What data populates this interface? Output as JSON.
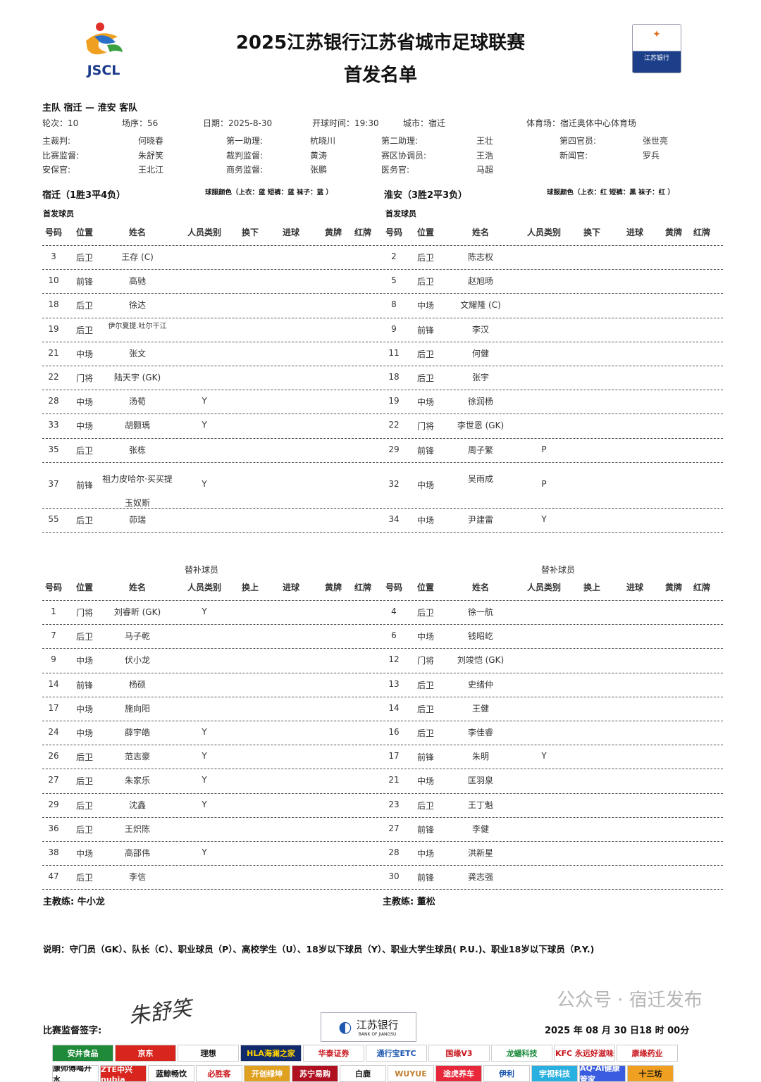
{
  "header": {
    "title_line1": "2025江苏银行江苏省城市足球联赛",
    "title_line2": "首发名单",
    "league_logo_text": "JSCL",
    "bank_logo_text": "江苏银行"
  },
  "match": {
    "teams_line": "主队 宿迁 — 淮安 客队",
    "round": "轮次：10",
    "match_no": "场序：56",
    "date": "日期：2025-8-30",
    "kickoff": "开球时间：19:30",
    "city": "城市：宿迁",
    "stadium": "体育场：宿迁奥体中心体育场"
  },
  "officials": [
    {
      "label": "主裁判:",
      "value": "何晓春"
    },
    {
      "label": "第一助理:",
      "value": "杭晓川"
    },
    {
      "label": "第二助理:",
      "value": "王壮"
    },
    {
      "label": "第四官员:",
      "value": "张世亮"
    },
    {
      "label": "比赛监督:",
      "value": "朱舒笑"
    },
    {
      "label": "裁判监督:",
      "value": "黄涛"
    },
    {
      "label": "赛区协调员:",
      "value": "王浩"
    },
    {
      "label": "新闻官:",
      "value": "罗兵"
    },
    {
      "label": "安保官:",
      "value": "王北江"
    },
    {
      "label": "商务监督:",
      "value": "张鹏"
    },
    {
      "label": "医务官:",
      "value": "马超"
    }
  ],
  "home": {
    "name": "宿迁（1胜3平4负）",
    "kit": "球服颜色（上衣：蓝  短裤：蓝  袜子：蓝 ）",
    "starters_label": "首发球员",
    "subs_label": "替补球员",
    "coach": "主教练:   牛小龙",
    "starters": [
      {
        "no": "3",
        "pos": "后卫",
        "name": "王存 (C)",
        "cat": ""
      },
      {
        "no": "10",
        "pos": "前锋",
        "name": "高驰",
        "cat": ""
      },
      {
        "no": "18",
        "pos": "后卫",
        "name": "徐达",
        "cat": ""
      },
      {
        "no": "19",
        "pos": "后卫",
        "name": "伊尔夏提.吐尔干江",
        "cat": ""
      },
      {
        "no": "21",
        "pos": "中场",
        "name": "张文",
        "cat": ""
      },
      {
        "no": "22",
        "pos": "门将",
        "name": "陆天宇 (GK)",
        "cat": ""
      },
      {
        "no": "28",
        "pos": "中场",
        "name": "汤荀",
        "cat": "Y"
      },
      {
        "no": "33",
        "pos": "中场",
        "name": "胡颢瑀",
        "cat": "Y"
      },
      {
        "no": "35",
        "pos": "后卫",
        "name": "张栋",
        "cat": ""
      },
      {
        "no": "37",
        "pos": "前锋",
        "name": "祖力皮哈尔·买买提玉奴斯",
        "cat": "Y"
      },
      {
        "no": "55",
        "pos": "后卫",
        "name": "茆瑞",
        "cat": ""
      }
    ],
    "subs": [
      {
        "no": "1",
        "pos": "门将",
        "name": "刘睿昕 (GK)",
        "cat": "Y"
      },
      {
        "no": "7",
        "pos": "后卫",
        "name": "马子乾",
        "cat": ""
      },
      {
        "no": "9",
        "pos": "中场",
        "name": "伏小龙",
        "cat": ""
      },
      {
        "no": "14",
        "pos": "前锋",
        "name": "杨硕",
        "cat": ""
      },
      {
        "no": "17",
        "pos": "中场",
        "name": "施向阳",
        "cat": ""
      },
      {
        "no": "24",
        "pos": "中场",
        "name": "薛宇皓",
        "cat": "Y"
      },
      {
        "no": "26",
        "pos": "后卫",
        "name": "范志豪",
        "cat": "Y"
      },
      {
        "no": "27",
        "pos": "后卫",
        "name": "朱家乐",
        "cat": "Y"
      },
      {
        "no": "29",
        "pos": "后卫",
        "name": "沈鑫",
        "cat": "Y"
      },
      {
        "no": "36",
        "pos": "后卫",
        "name": "王炽陈",
        "cat": ""
      },
      {
        "no": "38",
        "pos": "中场",
        "name": "高邵伟",
        "cat": "Y"
      },
      {
        "no": "47",
        "pos": "后卫",
        "name": "李信",
        "cat": ""
      }
    ]
  },
  "away": {
    "name": "淮安（3胜2平3负）",
    "kit": "球服颜色（上衣：红  短裤：黑  袜子：红 ）",
    "starters_label": "首发球员",
    "subs_label": "替补球员",
    "coach": "主教练:  董松",
    "starters": [
      {
        "no": "2",
        "pos": "后卫",
        "name": "陈志权",
        "cat": ""
      },
      {
        "no": "5",
        "pos": "后卫",
        "name": "赵旭旸",
        "cat": ""
      },
      {
        "no": "8",
        "pos": "中场",
        "name": "文耀隆 (C)",
        "cat": ""
      },
      {
        "no": "9",
        "pos": "前锋",
        "name": "李汉",
        "cat": ""
      },
      {
        "no": "11",
        "pos": "后卫",
        "name": "何健",
        "cat": ""
      },
      {
        "no": "18",
        "pos": "后卫",
        "name": "张宇",
        "cat": ""
      },
      {
        "no": "19",
        "pos": "中场",
        "name": "徐润杨",
        "cat": ""
      },
      {
        "no": "22",
        "pos": "门将",
        "name": "李世恩 (GK)",
        "cat": ""
      },
      {
        "no": "29",
        "pos": "前锋",
        "name": "周子繁",
        "cat": "P"
      },
      {
        "no": "32",
        "pos": "中场",
        "name": "吴雨成",
        "cat": "P"
      },
      {
        "no": "34",
        "pos": "中场",
        "name": "尹建雷",
        "cat": "Y"
      }
    ],
    "subs": [
      {
        "no": "4",
        "pos": "后卫",
        "name": "徐一航",
        "cat": ""
      },
      {
        "no": "6",
        "pos": "中场",
        "name": "钱昭屹",
        "cat": ""
      },
      {
        "no": "12",
        "pos": "门将",
        "name": "刘竣恺 (GK)",
        "cat": ""
      },
      {
        "no": "13",
        "pos": "后卫",
        "name": "史绪仲",
        "cat": ""
      },
      {
        "no": "14",
        "pos": "后卫",
        "name": "王健",
        "cat": ""
      },
      {
        "no": "16",
        "pos": "后卫",
        "name": "李佳睿",
        "cat": ""
      },
      {
        "no": "17",
        "pos": "前锋",
        "name": "朱明",
        "cat": "Y"
      },
      {
        "no": "21",
        "pos": "中场",
        "name": "匡羽泉",
        "cat": ""
      },
      {
        "no": "23",
        "pos": "后卫",
        "name": "王丁魁",
        "cat": ""
      },
      {
        "no": "27",
        "pos": "前锋",
        "name": "李健",
        "cat": ""
      },
      {
        "no": "28",
        "pos": "中场",
        "name": "洪新星",
        "cat": ""
      },
      {
        "no": "30",
        "pos": "前锋",
        "name": "龚志强",
        "cat": ""
      }
    ]
  },
  "columns_starters": [
    "号码",
    "位置",
    "姓名",
    "人员类别",
    "换下",
    "进球",
    "黄牌",
    "红牌"
  ],
  "columns_subs": [
    "号码",
    "位置",
    "姓名",
    "人员类别",
    "换上",
    "进球",
    "黄牌",
    "红牌"
  ],
  "legend": "说明：守门员（GK）、队长（C）、职业球员（P）、高校学生（U）、18岁以下球员（Y）、职业大学生球员( P.U.)、职业18岁以下球员（P.Y.)",
  "signature_label": "比赛监督签字:",
  "signature_text": "朱舒笑",
  "signed_time": "2025 年 08 月 30 日18 时 00分",
  "bank_footer": {
    "cn": "江苏银行",
    "en": "BANK OF JIANGSU"
  },
  "watermark": "公众号 · 宿迁发布",
  "sponsors_row1": [
    {
      "text": "安井食品",
      "bg": "#1f8a3a",
      "fg": "#fff"
    },
    {
      "text": "京东",
      "bg": "#d8261e",
      "fg": "#fff"
    },
    {
      "text": "理想",
      "bg": "#fff",
      "fg": "#111"
    },
    {
      "text": "HLA海澜之家",
      "bg": "#102a6b",
      "fg": "#ffd200"
    },
    {
      "text": "华泰证券",
      "bg": "#fff",
      "fg": "#c8161d"
    },
    {
      "text": "通行宝ETC",
      "bg": "#fff",
      "fg": "#1e57b0"
    },
    {
      "text": "国缘V3",
      "bg": "#fff",
      "fg": "#c8161d"
    },
    {
      "text": "龙蟠科技",
      "bg": "#fff",
      "fg": "#1a8a3a"
    },
    {
      "text": "KFC 永远好滋味",
      "bg": "#fff",
      "fg": "#c8161d"
    },
    {
      "text": "康缘药业",
      "bg": "#fff",
      "fg": "#c8161d"
    }
  ],
  "sponsors_row2": [
    {
      "text": "康师傅喝开水",
      "bg": "#fff",
      "fg": "#111"
    },
    {
      "text": "ZTE中兴 nubia",
      "bg": "#d8261e",
      "fg": "#fff"
    },
    {
      "text": "蓝鲸畅饮",
      "bg": "#fff",
      "fg": "#111"
    },
    {
      "text": "必胜客",
      "bg": "#fff",
      "fg": "#c8161d"
    },
    {
      "text": "开创绿坤",
      "bg": "#e0a020",
      "fg": "#fff"
    },
    {
      "text": "苏宁易购",
      "bg": "#b01020",
      "fg": "#fff"
    },
    {
      "text": "白鹿",
      "bg": "#fff",
      "fg": "#111"
    },
    {
      "text": "WUYUE",
      "bg": "#fff",
      "fg": "#c08030"
    },
    {
      "text": "途虎养车",
      "bg": "#e8283a",
      "fg": "#fff"
    },
    {
      "text": "伊利",
      "bg": "#fff",
      "fg": "#1e57b0"
    },
    {
      "text": "宇视科技",
      "bg": "#2ab0e0",
      "fg": "#fff"
    },
    {
      "text": "AQ·AI健康管家",
      "bg": "#3a5ce0",
      "fg": "#fff"
    },
    {
      "text": "十三坊",
      "bg": "#f0a020",
      "fg": "#111"
    }
  ]
}
